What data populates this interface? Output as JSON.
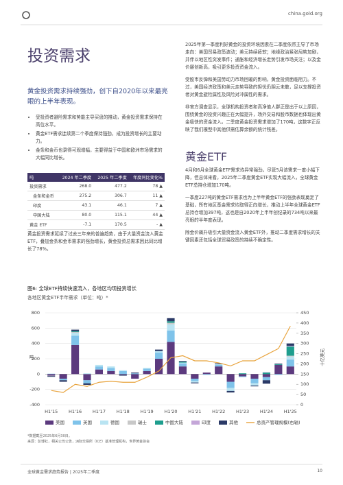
{
  "header": {
    "site": "china.gold.org"
  },
  "title": "投资需求",
  "subtitle": "黄金投资需求持续强劲，创下自2020年以来最亮眼的上半年表现。",
  "bullets": [
    "受投资者避险需求和势能主导买盘的推动，黄金投资需求保持在高位水平。",
    "黄金ETF需求连续第二个季度保持强劲，成为投资增长的主要动力。",
    "金条和金币也录得可观增幅，主要得益于中国和欧洲市场需求的大幅同比增长。"
  ],
  "table": {
    "headers": [
      "吨",
      "2024 年二季度",
      "2025 年二季度",
      "年度同比变化%"
    ],
    "rows": [
      [
        "投资需求",
        "268.0",
        "477.2",
        "78 ▲"
      ],
      [
        "金条和金币",
        "275.2",
        "306.7",
        "11 ▲"
      ],
      [
        "印度",
        "43.1",
        "46.1",
        "7 ▲"
      ],
      [
        "中国大陆",
        "80.0",
        "115.1",
        "44 ▲"
      ],
      [
        "黄金 ETF",
        "-7.1",
        "170.5",
        "- ▲"
      ]
    ]
  },
  "left_paragraph": "黄金投资需求延续了过去三年来的普遍趋势，由于大量资金流入黄金ETF，叠加金条和金币需求的强劲增长，黄金投资总需求因此同比增长了78%。",
  "right_paragraphs": [
    "2025年第一季度利好黄金的投资环境因素在二季度依然主导了市场走向：美国贸易政策波动；美元持续疲软；地缘政治紧张局势加剧，并伴以地区性突发事件；通胀和经济增长走势引发市场关注；以及金价屡创新高，吸引更多投资资金流入。",
    "受股市反弹和美国劳动力市场回暖的影响，黄金投资面临阻力。不过，美国经济政策和美元走势导致的担忧仍阴云未散，足以支撑投资者对黄金避险属性及风险对冲属性的需求。",
    "非官方调查显示，全球机构投资者和高净值人群正是出于以上原因，围绕黄金的投资兴趣正在大幅提升，场外交易和股市数据也体现出黄金极快的资金流入。二季度黄金投资需求增加了170吨，这数字正反映了我们模型中其他供需估算余额的统计残差。"
  ],
  "section_heading": "黄金ETF",
  "section_paragraphs": [
    "4月和6月全球黄金ETF需求均异常强劲，尽管5月该需求一度小幅下降，但总体来看，2025年二季度黄金ETF实现大幅流入，全球黄金ETF总持仓增加170吨。",
    "一季度227吨的黄金ETF需求也为上半年黄金ETF的强劲表现奠定了基础，所有地区基金需求均取得正向增长，推动上半年全球黄金ETF总持仓增加397吨，这也是自2020年上半年创纪录的734吨以来最亮眼的半年度表现。",
    "除金价飙升吸引大量资金流入黄金ETF外，推动二季度需求增长的关键因素还包括全球贸易政策的持续不确定性。"
  ],
  "chart_data": {
    "type": "bar",
    "stacked": true,
    "title": "图6: 全球ETF持续快速流入，各地区均现投资增长",
    "subtitle": "各地区黄金ETF半年需求（单位：吨）*",
    "ylabel": "吨",
    "y2label": "十亿美元",
    "categories": [
      "H1'15",
      null,
      "H1'16",
      null,
      "H1'17",
      null,
      "H1'18",
      null,
      "H1'19",
      null,
      "H1'20",
      null,
      "H1'21",
      null,
      "H1'22",
      null,
      "H1'23",
      null,
      "H1'24",
      null,
      "H1'25"
    ],
    "series": [
      {
        "name": "美国",
        "color": "#5c3a7e",
        "values": [
          -20,
          -60,
          380,
          -80,
          60,
          40,
          -10,
          -60,
          40,
          200,
          420,
          100,
          -60,
          20,
          100,
          -100,
          -30,
          -60,
          -40,
          120,
          100
        ]
      },
      {
        "name": "英国",
        "color": "#7fc3ea",
        "values": [
          5,
          -20,
          120,
          -40,
          40,
          40,
          40,
          10,
          30,
          80,
          150,
          40,
          -30,
          -10,
          20,
          -80,
          -10,
          -60,
          -40,
          -10,
          90
        ]
      },
      {
        "name": "德国",
        "color": "#b9e4f2",
        "values": [
          0,
          0,
          40,
          10,
          20,
          20,
          10,
          0,
          10,
          20,
          80,
          10,
          -20,
          0,
          10,
          -40,
          0,
          -30,
          0,
          0,
          40
        ]
      },
      {
        "name": "瑞士",
        "color": "#c8c8c8",
        "values": [
          -5,
          0,
          10,
          0,
          0,
          0,
          0,
          0,
          0,
          0,
          20,
          0,
          0,
          0,
          0,
          0,
          0,
          0,
          0,
          0,
          10
        ]
      },
      {
        "name": "中国大陆",
        "color": "#1e9e8e",
        "values": [
          0,
          0,
          10,
          0,
          0,
          0,
          0,
          0,
          0,
          0,
          20,
          10,
          0,
          0,
          0,
          0,
          10,
          0,
          20,
          10,
          120
        ]
      },
      {
        "name": "印度",
        "color": "#c4a6d8",
        "values": [
          0,
          0,
          0,
          0,
          0,
          0,
          0,
          0,
          0,
          0,
          0,
          0,
          0,
          0,
          0,
          0,
          0,
          0,
          5,
          5,
          10
        ]
      },
      {
        "name": "其他",
        "color": "#2b3a67",
        "values": [
          -10,
          -20,
          20,
          -20,
          0,
          0,
          -10,
          10,
          0,
          20,
          40,
          10,
          -10,
          0,
          10,
          -20,
          0,
          -10,
          -45,
          5,
          30
        ]
      },
      {
        "name": "总资产管理规模(右轴)",
        "color": "#e8a33c",
        "type": "line",
        "axis": "y2",
        "values": [
          70,
          60,
          100,
          90,
          110,
          115,
          110,
          110,
          135,
          165,
          230,
          240,
          215,
          215,
          205,
          190,
          215,
          215,
          245,
          275,
          385
        ]
      }
    ],
    "ylim": [
      -400,
      800
    ],
    "yticks": [
      -400,
      -200,
      0,
      200,
      400,
      600,
      800
    ],
    "y2lim": [
      0,
      450
    ],
    "y2ticks": [
      0,
      50,
      100,
      150,
      200,
      250,
      300,
      350,
      400,
      450
    ],
    "grid": true
  },
  "notes": [
    "*数据截至2025年6月30日。",
    "来源：彭博社，相关公司公告，洲际交易所（ICE）基准管理机构，世界黄金协会"
  ],
  "footer": {
    "text": "全球黄金需求趋势报告 | 2025年二季度",
    "page": "10"
  }
}
